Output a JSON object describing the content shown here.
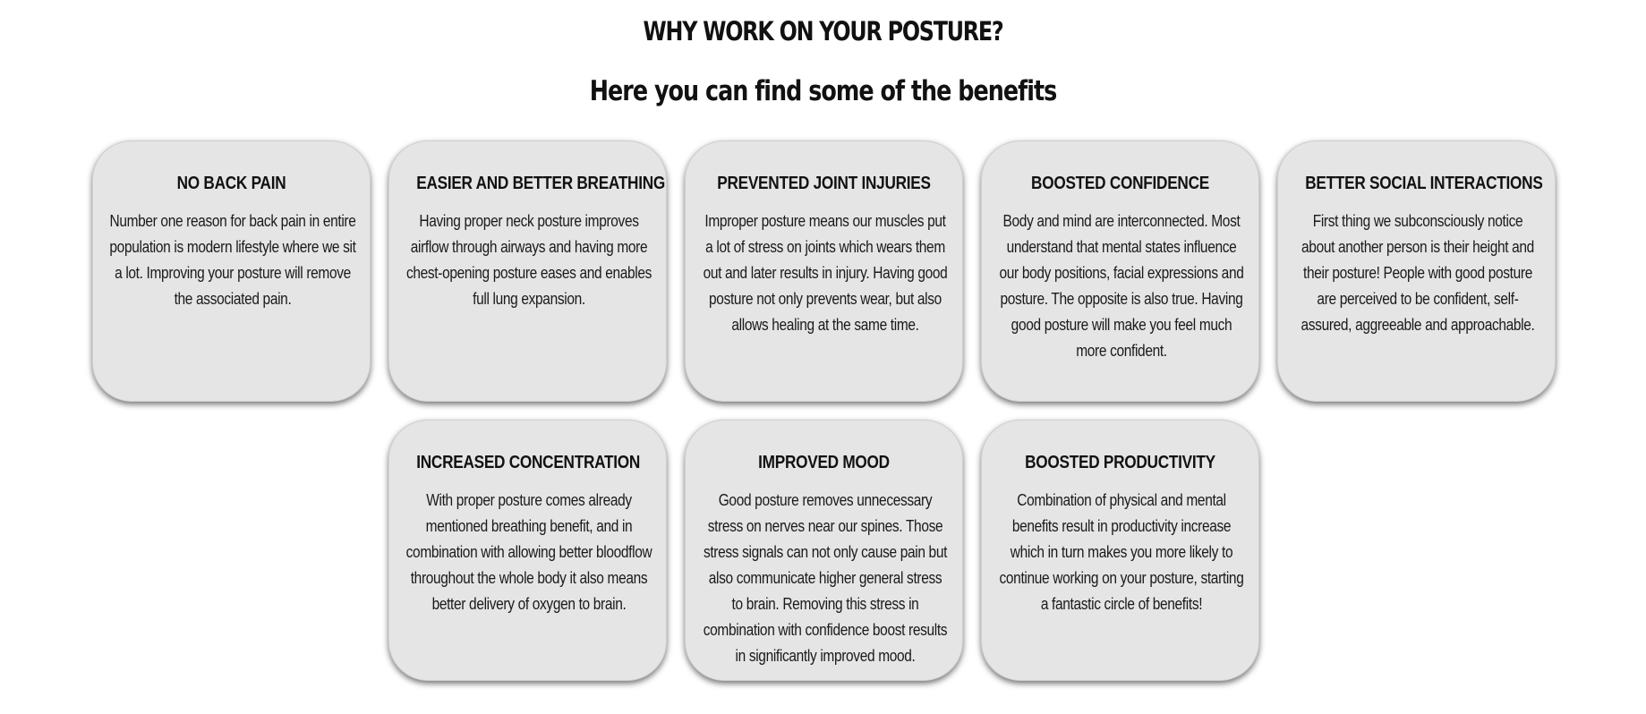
{
  "header": {
    "title": "WHY WORK ON YOUR POSTURE?",
    "subtitle": "Here you can find some of the benefits"
  },
  "cards": [
    {
      "title": "NO BACK PAIN",
      "text": "Number one reason for back pain in entire population is modern lifestyle where we sit a lot. Improving your posture will remove the associated pain."
    },
    {
      "title": "EASIER AND BETTER BREATHING",
      "text": "Having proper neck posture improves airflow through airways and having more chest-opening posture eases and enables full lung expansion."
    },
    {
      "title": "PREVENTED JOINT INJURIES",
      "text": "Improper posture means our muscles put a lot of stress on joints which wears them out and later results in injury. Having good posture not only prevents wear, but also allows healing at the same time."
    },
    {
      "title": "BOOSTED CONFIDENCE",
      "text": "Body and mind are interconnected. Most understand that mental states influence our body positions, facial expressions and posture. The opposite is also true. Having good posture will make you feel much more confident."
    },
    {
      "title": "BETTER SOCIAL INTERACTIONS",
      "text": "First thing we subconsciously notice about another person is their height and their posture! People with good posture are perceived to be confident, self-assured, aggreeable and approachable."
    },
    {
      "title": "INCREASED CONCENTRATION",
      "text": "With proper posture comes already mentioned breathing benefit, and in combination with allowing better bloodflow throughout the whole body it also means better delivery of oxygen to brain."
    },
    {
      "title": "IMPROVED MOOD",
      "text": "Good posture removes unnecessary stress on nerves near our spines. Those stress signals can not only cause pain but also communicate higher general stress to brain. Removing this stress in combination with confidence boost results in significantly improved mood."
    },
    {
      "title": "BOOSTED PRODUCTIVITY",
      "text": "Combination of physical and mental benefits result in productivity increase which in turn makes you more likely to continue working on your posture, starting a fantastic circle of benefits!"
    }
  ]
}
